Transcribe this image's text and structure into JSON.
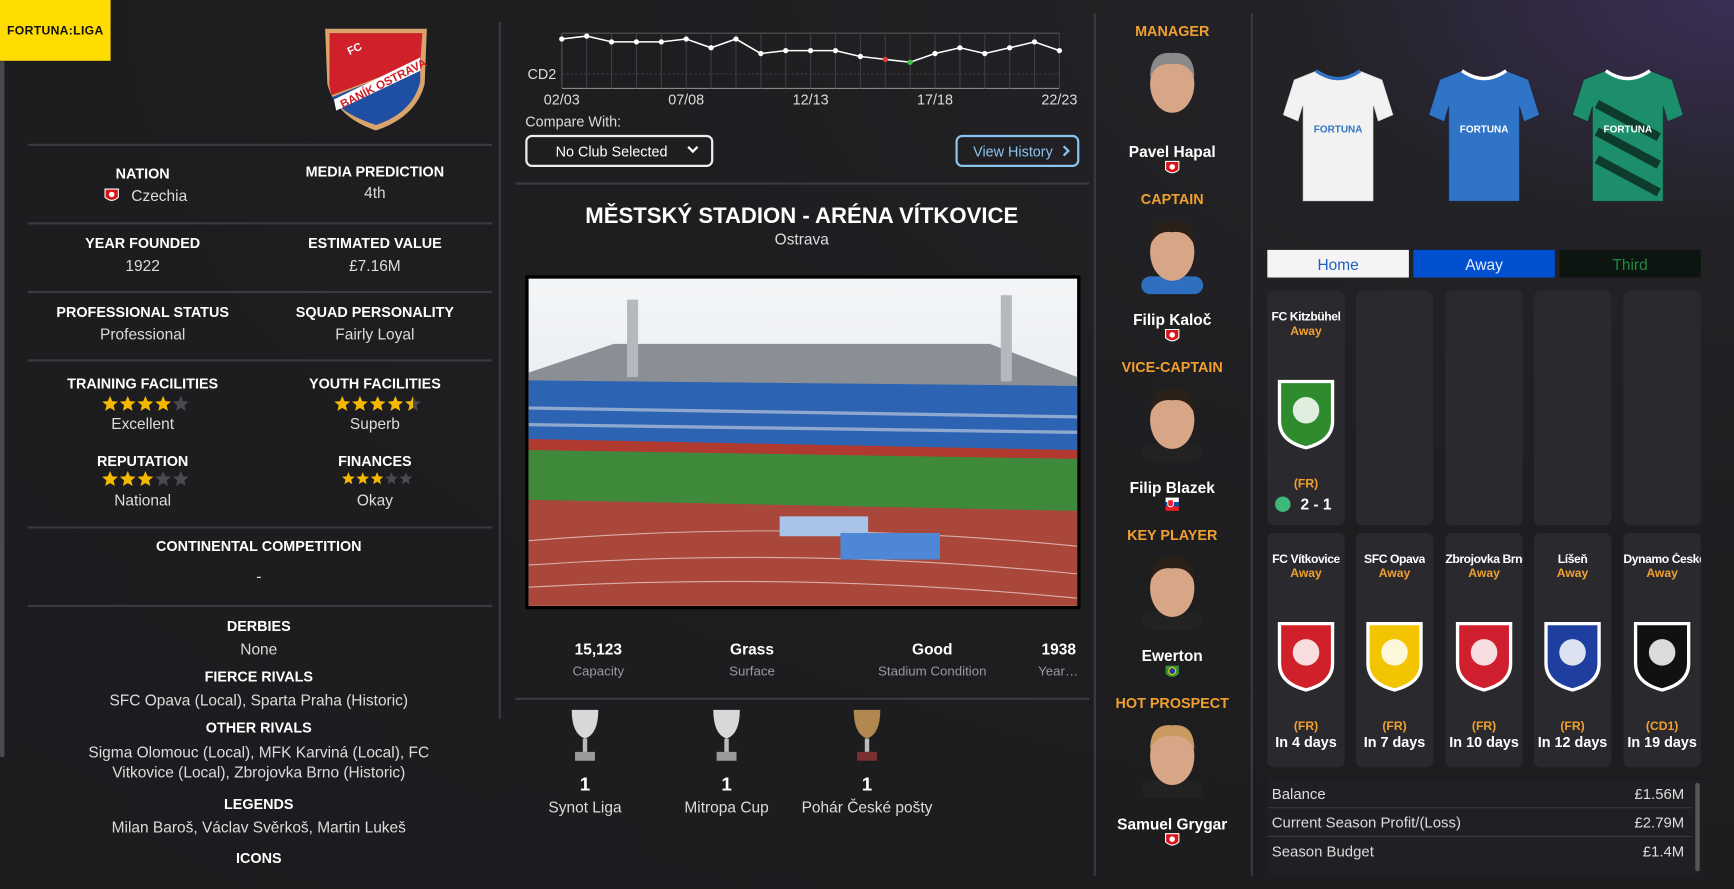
{
  "league": "FORTUNA:LIGA",
  "badge": {
    "top": "FC",
    "name": "BANÍK OSTRAVA"
  },
  "club_info": [
    {
      "label": "NATION",
      "value": "Czechia",
      "flag": "cz"
    },
    {
      "label": "MEDIA PREDICTION",
      "value": "4th"
    },
    {
      "label": "YEAR FOUNDED",
      "value": "1922"
    },
    {
      "label": "ESTIMATED VALUE",
      "value": "£7.16M"
    },
    {
      "label": "PROFESSIONAL STATUS",
      "value": "Professional"
    },
    {
      "label": "SQUAD PERSONALITY",
      "value": "Fairly Loyal"
    },
    {
      "label": "TRAINING FACILITIES",
      "stars": 4,
      "value": "Excellent"
    },
    {
      "label": "YOUTH FACILITIES",
      "stars": 4.5,
      "value": "Superb"
    },
    {
      "label": "REPUTATION",
      "stars": 3,
      "value": "National"
    },
    {
      "label": "FINANCES",
      "stars": 3,
      "value": "Okay"
    }
  ],
  "continental": {
    "label": "CONTINENTAL COMPETITION",
    "value": "-"
  },
  "rivals": [
    {
      "label": "DERBIES",
      "value": "None"
    },
    {
      "label": "FIERCE RIVALS",
      "value": "SFC Opava (Local), Sparta Praha (Historic)"
    },
    {
      "label": "OTHER RIVALS",
      "value": "Sigma Olomouc (Local), MFK Karviná (Local), FC Vitkovice (Local), Zbrojovka Brno (Historic)"
    },
    {
      "label": "LEGENDS",
      "value": "Milan Baroš, Václav Svěrkoš, Martin Lukeš"
    },
    {
      "label": "ICONS"
    }
  ],
  "history_chart": {
    "type": "line",
    "categories": [
      "02/03",
      null,
      null,
      null,
      null,
      "07/08",
      null,
      null,
      null,
      null,
      "12/13",
      null,
      null,
      null,
      null,
      "17/18",
      null,
      null,
      null,
      null,
      "22/23"
    ],
    "values": [
      3,
      2,
      4,
      4,
      4,
      3,
      6,
      3,
      8,
      7,
      7,
      7,
      9,
      10,
      11,
      8,
      6,
      8,
      6,
      4,
      7
    ],
    "color": "#ffffff",
    "point_colors": [
      "#ffffff",
      "#ffffff",
      "#ffffff",
      "#ffffff",
      "#ffffff",
      "#ffffff",
      "#ffffff",
      "#ffffff",
      "#ffffff",
      "#ffffff",
      "#ffffff",
      "#ffffff",
      "#ffffff",
      "#e53935",
      "#43c043",
      "#ffffff",
      "#ffffff",
      "#ffffff",
      "#ffffff",
      "#ffffff",
      "#ffffff"
    ],
    "ylim": [
      20,
      1
    ],
    "yticks": [
      {
        "value": 15,
        "label": "CD2"
      }
    ],
    "grid": true
  },
  "compare_label": "Compare With:",
  "compare_select": "No Club Selected",
  "history_button": "View History",
  "stadium": {
    "name": "MĚSTSKÝ STADION - ARÉNA VÍTKOVICE",
    "city": "Ostrava",
    "stats": [
      {
        "value": "15,123",
        "label": "Capacity"
      },
      {
        "value": "Grass",
        "label": "Surface"
      },
      {
        "value": "Good",
        "label": "Stadium Condition"
      },
      {
        "value": "1938",
        "label": "Year…"
      }
    ]
  },
  "trophies": [
    {
      "count": 1,
      "name": "Synot Liga"
    },
    {
      "count": 1,
      "name": "Mitropa Cup"
    },
    {
      "count": 1,
      "name": "Pohár České pošty"
    }
  ],
  "staff": [
    {
      "role": "MANAGER",
      "name": "Pavel Hapal",
      "flag": "cz"
    },
    {
      "role": "CAPTAIN",
      "name": "Filip Kaloč",
      "flag": "cz"
    },
    {
      "role": "VICE-CAPTAIN",
      "name": "Filip Blazek",
      "flag": "sk"
    },
    {
      "role": "KEY PLAYER",
      "name": "Ewerton",
      "flag": "br"
    },
    {
      "role": "HOT PROSPECT",
      "name": "Samuel Grygar",
      "flag": "cz"
    }
  ],
  "kits": {
    "sponsor": "FORTUNA",
    "colors": [
      "#f2f2f2",
      "#2f74c6",
      "#1d8e6c"
    ],
    "tabs": [
      "Home",
      "Away",
      "Third"
    ]
  },
  "fixtures": [
    {
      "opponent": "FC Kitzbühel",
      "venue": "Away",
      "competition": "(FR)",
      "result": "2 - 1",
      "badge_color": "#2e8b2e"
    },
    {
      "opponent": "FC Vítkovice",
      "venue": "Away",
      "competition": "(FR)",
      "when": "In 4 days",
      "badge_color": "#d0202a"
    },
    {
      "opponent": "SFC Opava",
      "venue": "Away",
      "competition": "(FR)",
      "when": "In 7 days",
      "badge_color": "#f2c500"
    },
    {
      "opponent": "Zbrojovka Brno",
      "venue": "Away",
      "competition": "(FR)",
      "when": "In 10 days",
      "badge_color": "#d02030"
    },
    {
      "opponent": "Líšeň",
      "venue": "Away",
      "competition": "(FR)",
      "when": "In 12 days",
      "badge_color": "#1f3fa0"
    },
    {
      "opponent": "Dynamo České Bud...",
      "venue": "Away",
      "competition": "(CD1)",
      "when": "In 19 days",
      "badge_color": "#111111"
    }
  ],
  "finances": [
    {
      "label": "Balance",
      "value": "£1.56M"
    },
    {
      "label": "Current Season Profit/(Loss)",
      "value": "£2.79M"
    },
    {
      "label": "Season Budget",
      "value": "£1.4M"
    }
  ]
}
